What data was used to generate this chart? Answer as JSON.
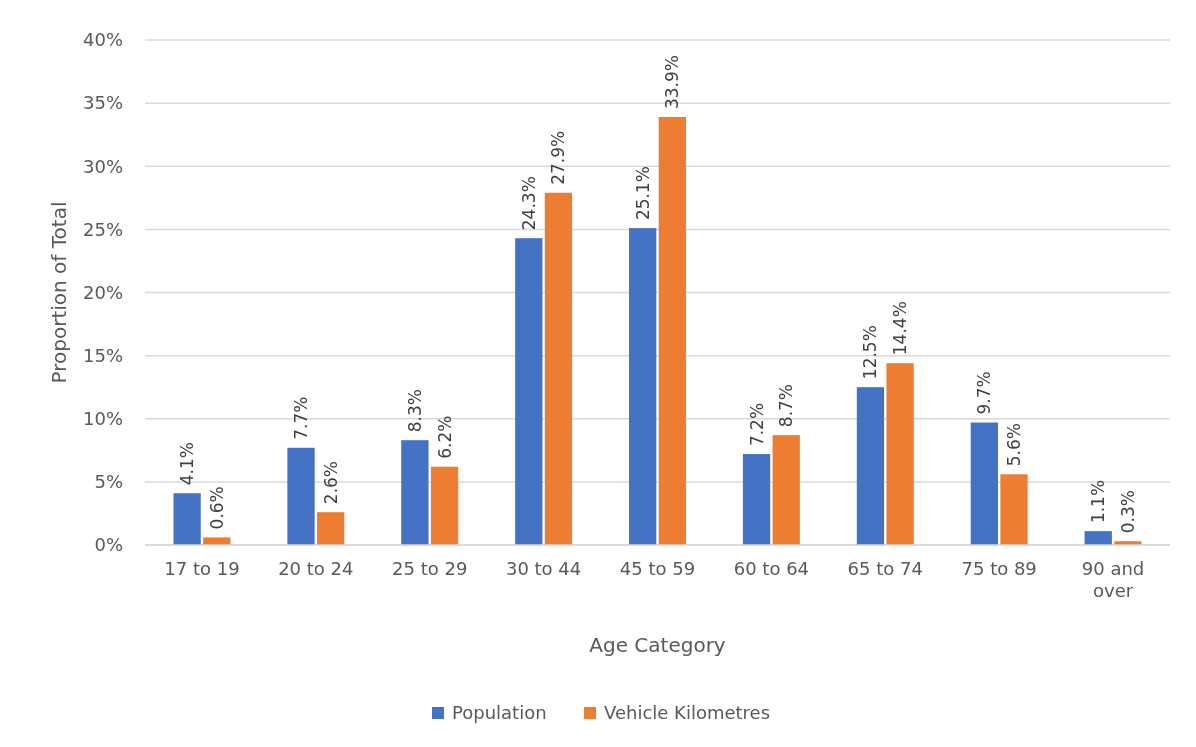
{
  "chart_data": {
    "type": "bar",
    "xlabel": "Age Category",
    "ylabel": "Proportion of Total",
    "categories": [
      "17 to 19",
      "20 to 24",
      "25 to 29",
      "30 to 44",
      "45 to 59",
      "60 to 64",
      "65 to 74",
      "75 to 89",
      "90 and over"
    ],
    "series": [
      {
        "name": "Population",
        "color": "#4472c4",
        "values": [
          4.1,
          7.7,
          8.3,
          24.3,
          25.1,
          7.2,
          12.5,
          9.7,
          1.1
        ],
        "value_labels": [
          "4.1%",
          "7.7%",
          "8.3%",
          "24.3%",
          "25.1%",
          "7.2%",
          "12.5%",
          "9.7%",
          "1.1%"
        ]
      },
      {
        "name": "Vehicle Kilometres",
        "color": "#ed7d31",
        "values": [
          0.6,
          2.6,
          6.2,
          27.9,
          33.9,
          8.7,
          14.4,
          5.6,
          0.3
        ],
        "value_labels": [
          "0.6%",
          "2.6%",
          "6.2%",
          "27.9%",
          "33.9%",
          "8.7%",
          "14.4%",
          "5.6%",
          "0.3%"
        ]
      }
    ],
    "ylim": [
      0,
      40
    ],
    "yticks": [
      {
        "value": 0,
        "label": "0%"
      },
      {
        "value": 5,
        "label": "5%"
      },
      {
        "value": 10,
        "label": "10%"
      },
      {
        "value": 15,
        "label": "15%"
      },
      {
        "value": 20,
        "label": "20%"
      },
      {
        "value": 25,
        "label": "25%"
      },
      {
        "value": 30,
        "label": "30%"
      },
      {
        "value": 35,
        "label": "35%"
      },
      {
        "value": 40,
        "label": "40%"
      }
    ],
    "grid": "y",
    "legend": "bottom"
  }
}
